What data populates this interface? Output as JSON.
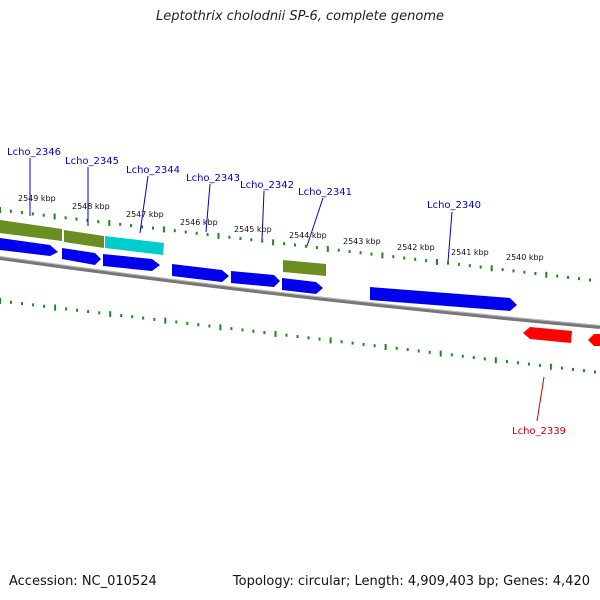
{
  "title": "Leptothrix cholodnii SP-6, complete genome",
  "footer": {
    "accession": "Accession: NC_010524",
    "summary": "Topology: circular; Length: 4,909,403 bp; Genes: 4,420"
  },
  "kbp_labels": [
    "2549 kbp",
    "2548 kbp",
    "2547 kbp",
    "2546 kbp",
    "2545 kbp",
    "2544 kbp",
    "2543 kbp",
    "2542 kbp",
    "2541 kbp",
    "2540 kbp"
  ],
  "gene_labels": [
    "Lcho_2346",
    "Lcho_2345",
    "Lcho_2344",
    "Lcho_2343",
    "Lcho_2342",
    "Lcho_2341",
    "Lcho_2340",
    "Lcho_2339"
  ],
  "colors": {
    "forward_label": "#0000cc",
    "reverse_label": "#cc0000",
    "gene_forward": "#0000ee",
    "gene_olive": "#6b8e23",
    "gene_cyan": "#00cccc",
    "gene_reverse": "#ff0000",
    "ticks": "#1a8a1a",
    "backbone": "#777777"
  }
}
